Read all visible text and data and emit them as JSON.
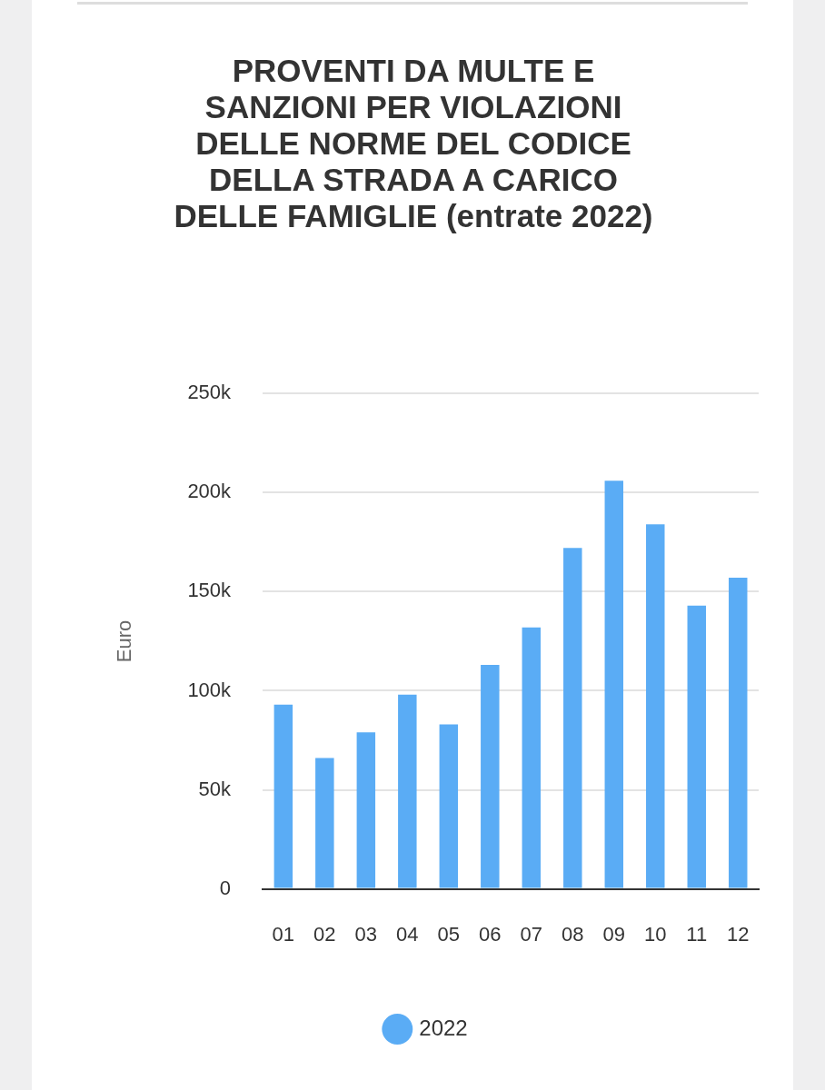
{
  "chart_data": {
    "type": "bar",
    "title": "PROVENTI DA MULTE E SANZIONI PER VIOLAZIONI DELLE NORME DEL CODICE DELLA STRADA A CARICO DELLE FAMIGLIE (entrate 2022)",
    "ylabel": "Euro",
    "categories": [
      "01",
      "02",
      "03",
      "04",
      "05",
      "06",
      "07",
      "08",
      "09",
      "10",
      "11",
      "12"
    ],
    "series": [
      {
        "name": "2022",
        "color": "#5aacf5",
        "values": [
          93000,
          66000,
          79000,
          98000,
          83000,
          113000,
          132000,
          172000,
          206000,
          184000,
          143000,
          157000
        ]
      }
    ],
    "ylim": [
      0,
      250000
    ],
    "yticks": [
      0,
      {
        "value": 50000,
        "label": "50k"
      },
      {
        "value": 100000,
        "label": "100k"
      },
      {
        "value": 150000,
        "label": "150k"
      },
      {
        "value": 200000,
        "label": "200k"
      },
      {
        "value": 250000,
        "label": "250k"
      }
    ],
    "grid": "y",
    "legend": "bottom"
  }
}
